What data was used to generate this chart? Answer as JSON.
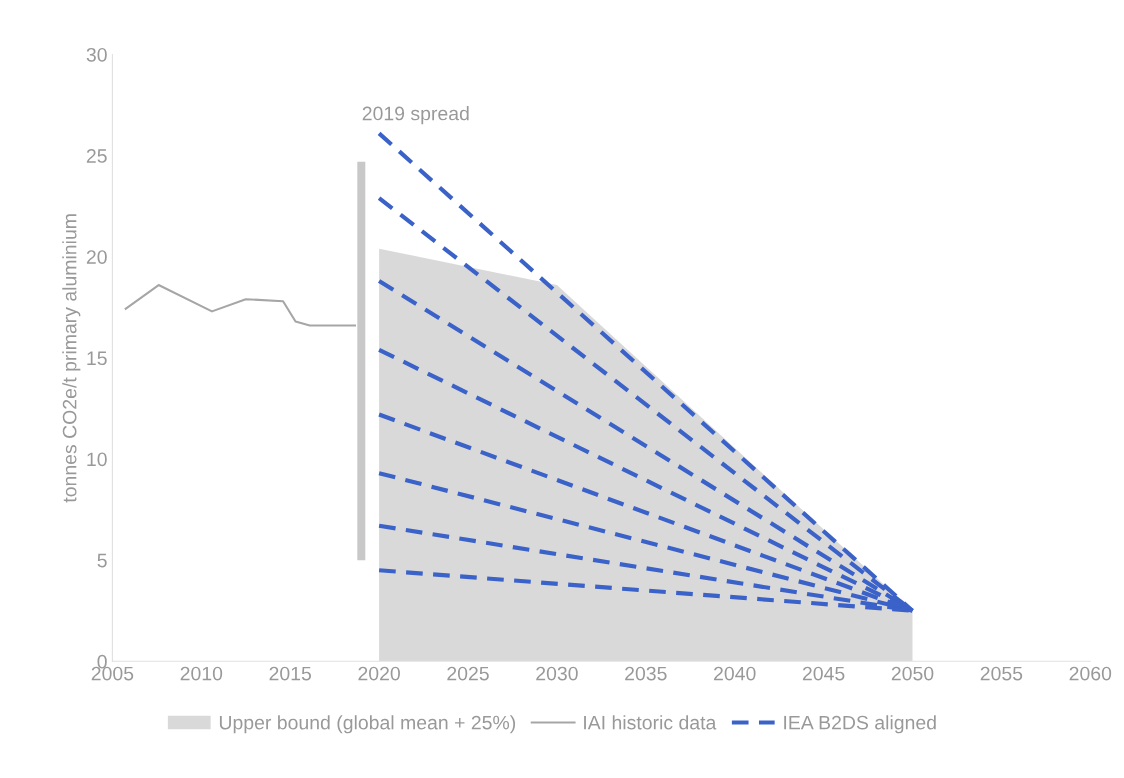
{
  "chart_data": {
    "type": "line",
    "ylabel": "tonnes CO2e/t primary aluminium",
    "xlim": [
      2005,
      2060
    ],
    "xticks": [
      2005,
      2010,
      2015,
      2020,
      2025,
      2030,
      2035,
      2040,
      2045,
      2050,
      2055,
      2060
    ],
    "ylim": [
      0,
      30
    ],
    "yticks": [
      0,
      5,
      10,
      15,
      20,
      25,
      30
    ],
    "grid": false,
    "legend": "bottom",
    "annotations": [
      "2019 spread"
    ],
    "series": [
      {
        "name": "Upper bound (global mean + 25%)",
        "type": "area",
        "color": "#d9d9d9",
        "x": [
          2020,
          2030,
          2050
        ],
        "values": [
          20.4,
          18.6,
          2.5
        ]
      },
      {
        "type": "bar",
        "color": "#c8c8c8",
        "x": [
          2019
        ],
        "base": [
          5
        ],
        "values": [
          19.7
        ]
      },
      {
        "name": "IAI historic data",
        "color": "#a6a6a6",
        "line_style": "solid",
        "x": [
          2005.7,
          2007.6,
          2010.6,
          2012.5,
          2014.6,
          2015.3,
          2016.1,
          2018.7
        ],
        "values": [
          17.4,
          18.6,
          17.3,
          17.9,
          17.8,
          16.8,
          16.6,
          16.6
        ]
      },
      {
        "name": "IEA B2DS aligned",
        "color": "#3a62c8",
        "line_style": "dashed",
        "x": [
          2020,
          2050
        ],
        "values": [
          26.1,
          2.5
        ]
      },
      {
        "color": "#3a62c8",
        "line_style": "dashed",
        "x": [
          2020,
          2050
        ],
        "values": [
          22.9,
          2.5
        ]
      },
      {
        "color": "#3a62c8",
        "line_style": "dashed",
        "x": [
          2020,
          2050
        ],
        "values": [
          18.8,
          2.5
        ]
      },
      {
        "color": "#3a62c8",
        "line_style": "dashed",
        "x": [
          2020,
          2050
        ],
        "values": [
          15.4,
          2.5
        ]
      },
      {
        "color": "#3a62c8",
        "line_style": "dashed",
        "x": [
          2020,
          2050
        ],
        "values": [
          12.2,
          2.5
        ]
      },
      {
        "color": "#3a62c8",
        "line_style": "dashed",
        "x": [
          2020,
          2050
        ],
        "values": [
          9.3,
          2.5
        ]
      },
      {
        "color": "#3a62c8",
        "line_style": "dashed",
        "x": [
          2020,
          2050
        ],
        "values": [
          6.7,
          2.5
        ]
      },
      {
        "color": "#3a62c8",
        "line_style": "dashed",
        "x": [
          2020,
          2050
        ],
        "values": [
          4.5,
          2.5
        ]
      }
    ]
  }
}
